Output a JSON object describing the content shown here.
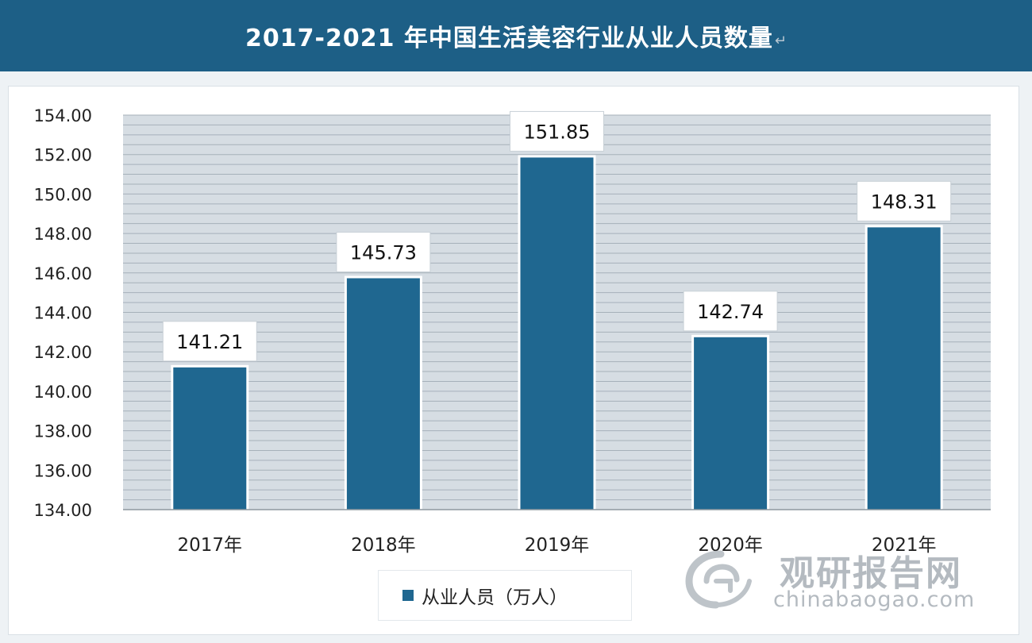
{
  "header": {
    "title": "2017-2021 年中国生活美容行业从业人员数量",
    "title_mark": "↵"
  },
  "chart_data": {
    "type": "bar",
    "title": "2017-2021 年中国生活美容行业从业人员数量",
    "categories": [
      "2017年",
      "2018年",
      "2019年",
      "2020年",
      "2021年"
    ],
    "series": [
      {
        "name": "从业人员（万人）",
        "values": [
          141.21,
          145.73,
          151.85,
          142.74,
          148.31
        ]
      }
    ],
    "data_labels": [
      "141.21",
      "145.73",
      "151.85",
      "142.74",
      "148.31"
    ],
    "y_ticks": [
      "134.00",
      "136.00",
      "138.00",
      "140.00",
      "142.00",
      "144.00",
      "146.00",
      "148.00",
      "150.00",
      "152.00",
      "154.00"
    ],
    "ylim": [
      134,
      154
    ],
    "grid": true,
    "legend_position": "bottom"
  },
  "legend": {
    "label": "从业人员（万人）"
  },
  "watermark": {
    "brand": "观研报告网",
    "url": "chinabaogao.com"
  },
  "colors": {
    "bar": "#1f6790",
    "title_bar": "#1d5f86",
    "plot_bg": "#d6dde3",
    "grid_line": "#a6b1ba"
  }
}
